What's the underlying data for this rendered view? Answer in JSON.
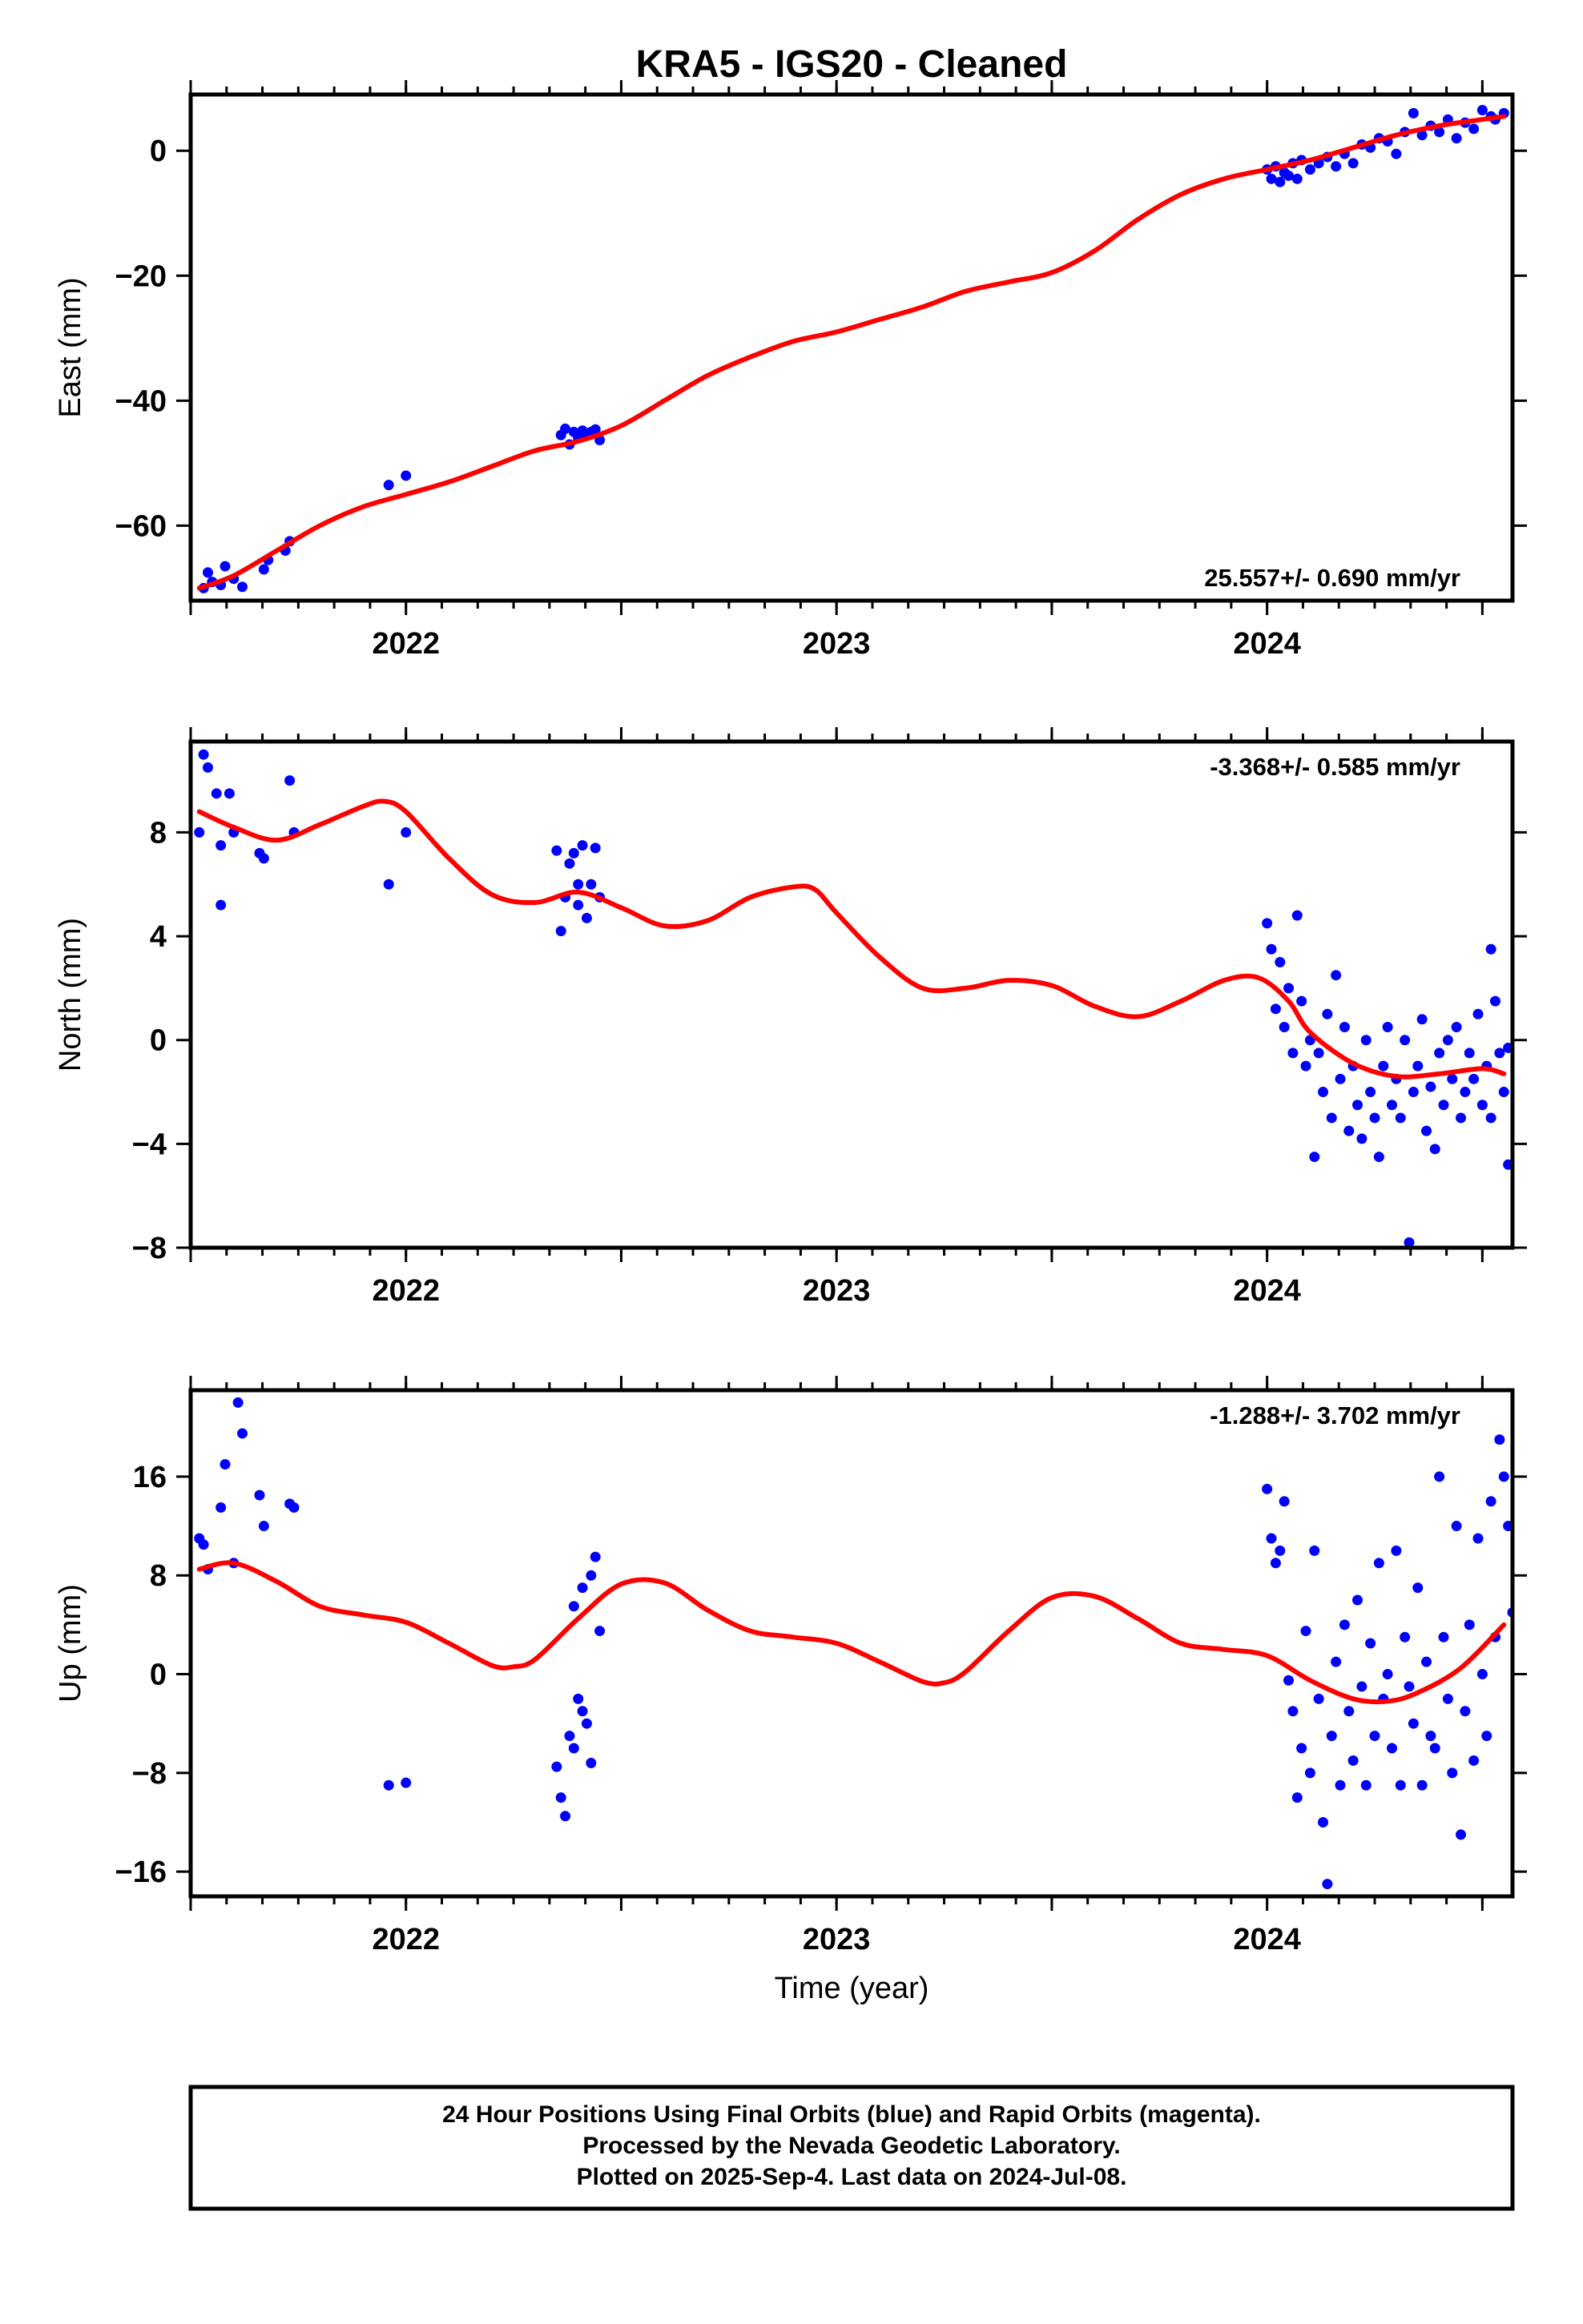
{
  "title": "KRA5  - IGS20 - Cleaned",
  "xlabel": "Time (year)",
  "footer": [
    "24 Hour Positions Using Final Orbits (blue) and Rapid Orbits (magenta).",
    "Processed by the Nevada Geodetic Laboratory.",
    "Plotted on 2025-Sep-4. Last data on 2024-Jul-08."
  ],
  "colors": {
    "data": "#0000ff",
    "fit": "#ff0000",
    "frame": "#000000"
  },
  "chart_data": [
    {
      "type": "scatter",
      "ylabel": "East (mm)",
      "xlim": [
        2021.5,
        2024.57
      ],
      "ylim": [
        -72,
        9
      ],
      "xticks": [
        2022,
        2023,
        2024
      ],
      "yticks": [
        -60,
        -40,
        -20,
        0
      ],
      "rate_text": "25.557+/- 0.690 mm/yr",
      "rate_position": "bottom-right",
      "points": [
        [
          2021.53,
          -70
        ],
        [
          2021.54,
          -67.5
        ],
        [
          2021.55,
          -69
        ],
        [
          2021.57,
          -69.5
        ],
        [
          2021.58,
          -66.5
        ],
        [
          2021.6,
          -68.5
        ],
        [
          2021.62,
          -69.8
        ],
        [
          2021.67,
          -67
        ],
        [
          2021.68,
          -65.5
        ],
        [
          2021.72,
          -64
        ],
        [
          2021.73,
          -62.5
        ],
        [
          2021.96,
          -53.5
        ],
        [
          2022.0,
          -52
        ],
        [
          2022.36,
          -45.5
        ],
        [
          2022.37,
          -44.5
        ],
        [
          2022.38,
          -47
        ],
        [
          2022.39,
          -45
        ],
        [
          2022.4,
          -46
        ],
        [
          2022.41,
          -44.8
        ],
        [
          2022.42,
          -45.5
        ],
        [
          2022.43,
          -45
        ],
        [
          2022.44,
          -44.6
        ],
        [
          2022.45,
          -46.3
        ],
        [
          2024.0,
          -3
        ],
        [
          2024.01,
          -4.5
        ],
        [
          2024.02,
          -2.5
        ],
        [
          2024.03,
          -5
        ],
        [
          2024.04,
          -3.5
        ],
        [
          2024.05,
          -4
        ],
        [
          2024.06,
          -2
        ],
        [
          2024.07,
          -4.5
        ],
        [
          2024.08,
          -1.5
        ],
        [
          2024.1,
          -3
        ],
        [
          2024.12,
          -2
        ],
        [
          2024.14,
          -1
        ],
        [
          2024.16,
          -2.5
        ],
        [
          2024.18,
          -0.5
        ],
        [
          2024.2,
          -2
        ],
        [
          2024.22,
          1
        ],
        [
          2024.24,
          0.5
        ],
        [
          2024.26,
          2
        ],
        [
          2024.28,
          1.5
        ],
        [
          2024.3,
          -0.5
        ],
        [
          2024.32,
          3
        ],
        [
          2024.34,
          6
        ],
        [
          2024.36,
          2.5
        ],
        [
          2024.38,
          4
        ],
        [
          2024.4,
          3
        ],
        [
          2024.42,
          5
        ],
        [
          2024.44,
          2
        ],
        [
          2024.46,
          4.5
        ],
        [
          2024.48,
          3.5
        ],
        [
          2024.5,
          6.5
        ],
        [
          2024.52,
          5.5
        ],
        [
          2024.53,
          5
        ],
        [
          2024.55,
          6
        ]
      ],
      "fit": {
        "x": [
          2021.52,
          2021.6,
          2021.7,
          2021.8,
          2021.9,
          2022.0,
          2022.1,
          2022.2,
          2022.3,
          2022.4,
          2022.5,
          2022.6,
          2022.7,
          2022.8,
          2022.9,
          2023.0,
          2023.1,
          2023.2,
          2023.3,
          2023.4,
          2023.5,
          2023.6,
          2023.7,
          2023.8,
          2023.9,
          2024.0,
          2024.1,
          2024.2,
          2024.3,
          2024.4,
          2024.5,
          2024.55
        ],
        "y": [
          -70,
          -68,
          -64,
          -60,
          -57,
          -55,
          -53,
          -50.5,
          -48,
          -46.5,
          -44,
          -40,
          -36,
          -33,
          -30.5,
          -29,
          -27,
          -25,
          -22.5,
          -21,
          -19.5,
          -16,
          -11,
          -7,
          -4.5,
          -3,
          -1.5,
          0.5,
          2.5,
          4,
          5,
          5.5
        ]
      }
    },
    {
      "type": "scatter",
      "ylabel": "North (mm)",
      "xlim": [
        2021.5,
        2024.57
      ],
      "ylim": [
        -8,
        11.5
      ],
      "xticks": [
        2022,
        2023,
        2024
      ],
      "yticks": [
        -8,
        -4,
        0,
        4,
        8
      ],
      "rate_text": "-3.368+/- 0.585 mm/yr",
      "rate_position": "top-right",
      "points": [
        [
          2021.53,
          11
        ],
        [
          2021.54,
          10.5
        ],
        [
          2021.52,
          8
        ],
        [
          2021.56,
          9.5
        ],
        [
          2021.57,
          7.5
        ],
        [
          2021.57,
          5.2
        ],
        [
          2021.59,
          9.5
        ],
        [
          2021.6,
          8
        ],
        [
          2021.66,
          7.2
        ],
        [
          2021.67,
          7
        ],
        [
          2021.73,
          10
        ],
        [
          2021.74,
          8
        ],
        [
          2021.96,
          6
        ],
        [
          2022.0,
          8
        ],
        [
          2022.35,
          7.3
        ],
        [
          2022.36,
          4.2
        ],
        [
          2022.37,
          5.5
        ],
        [
          2022.38,
          6.8
        ],
        [
          2022.39,
          7.2
        ],
        [
          2022.4,
          6
        ],
        [
          2022.4,
          5.2
        ],
        [
          2022.41,
          7.5
        ],
        [
          2022.42,
          4.7
        ],
        [
          2022.43,
          6
        ],
        [
          2022.44,
          7.4
        ],
        [
          2022.45,
          5.5
        ],
        [
          2024.0,
          4.5
        ],
        [
          2024.01,
          3.5
        ],
        [
          2024.02,
          1.2
        ],
        [
          2024.03,
          3
        ],
        [
          2024.04,
          0.5
        ],
        [
          2024.05,
          2
        ],
        [
          2024.06,
          -0.5
        ],
        [
          2024.07,
          4.8
        ],
        [
          2024.08,
          1.5
        ],
        [
          2024.09,
          -1
        ],
        [
          2024.1,
          0
        ],
        [
          2024.11,
          -4.5
        ],
        [
          2024.12,
          -0.5
        ],
        [
          2024.13,
          -2
        ],
        [
          2024.14,
          1
        ],
        [
          2024.15,
          -3
        ],
        [
          2024.16,
          2.5
        ],
        [
          2024.17,
          -1.5
        ],
        [
          2024.18,
          0.5
        ],
        [
          2024.19,
          -3.5
        ],
        [
          2024.2,
          -1
        ],
        [
          2024.21,
          -2.5
        ],
        [
          2024.22,
          -3.8
        ],
        [
          2024.23,
          0
        ],
        [
          2024.24,
          -2
        ],
        [
          2024.25,
          -3
        ],
        [
          2024.26,
          -4.5
        ],
        [
          2024.27,
          -1
        ],
        [
          2024.28,
          0.5
        ],
        [
          2024.29,
          -2.5
        ],
        [
          2024.3,
          -1.5
        ],
        [
          2024.31,
          -3
        ],
        [
          2024.32,
          0
        ],
        [
          2024.33,
          -7.8
        ],
        [
          2024.34,
          -2
        ],
        [
          2024.35,
          -1
        ],
        [
          2024.36,
          0.8
        ],
        [
          2024.37,
          -3.5
        ],
        [
          2024.38,
          -1.8
        ],
        [
          2024.39,
          -4.2
        ],
        [
          2024.4,
          -0.5
        ],
        [
          2024.41,
          -2.5
        ],
        [
          2024.42,
          0
        ],
        [
          2024.43,
          -1.5
        ],
        [
          2024.44,
          0.5
        ],
        [
          2024.45,
          -3
        ],
        [
          2024.46,
          -2
        ],
        [
          2024.47,
          -0.5
        ],
        [
          2024.48,
          -1.5
        ],
        [
          2024.49,
          1
        ],
        [
          2024.5,
          -2.5
        ],
        [
          2024.51,
          -1
        ],
        [
          2024.52,
          -3
        ],
        [
          2024.52,
          3.5
        ],
        [
          2024.53,
          1.5
        ],
        [
          2024.54,
          -0.5
        ],
        [
          2024.55,
          -2
        ],
        [
          2024.56,
          -4.8
        ],
        [
          2024.56,
          -0.3
        ]
      ],
      "fit": {
        "x": [
          2021.52,
          2021.6,
          2021.7,
          2021.8,
          2021.9,
          2021.95,
          2022.0,
          2022.1,
          2022.2,
          2022.3,
          2022.4,
          2022.5,
          2022.6,
          2022.7,
          2022.8,
          2022.9,
          2022.95,
          2023.0,
          2023.1,
          2023.2,
          2023.3,
          2023.4,
          2023.5,
          2023.6,
          2023.7,
          2023.8,
          2023.9,
          2023.98,
          2024.05,
          2024.1,
          2024.2,
          2024.3,
          2024.4,
          2024.5,
          2024.55
        ],
        "y": [
          8.8,
          8.2,
          7.7,
          8.3,
          9,
          9.2,
          8.8,
          7,
          5.6,
          5.3,
          5.7,
          5.1,
          4.4,
          4.6,
          5.5,
          5.9,
          5.8,
          4.9,
          3.2,
          2,
          2,
          2.3,
          2.1,
          1.3,
          0.9,
          1.5,
          2.3,
          2.4,
          1.5,
          0.3,
          -0.9,
          -1.4,
          -1.3,
          -1.1,
          -1.3
        ]
      }
    },
    {
      "type": "scatter",
      "ylabel": "Up (mm)",
      "xlim": [
        2021.5,
        2024.57
      ],
      "ylim": [
        -18,
        23
      ],
      "xticks": [
        2022,
        2023,
        2024
      ],
      "yticks": [
        -16,
        -8,
        0,
        8,
        16
      ],
      "rate_text": "-1.288+/- 3.702 mm/yr",
      "rate_position": "top-right",
      "points": [
        [
          2021.52,
          11
        ],
        [
          2021.53,
          10.5
        ],
        [
          2021.54,
          8.5
        ],
        [
          2021.57,
          13.5
        ],
        [
          2021.58,
          17
        ],
        [
          2021.6,
          9
        ],
        [
          2021.61,
          22
        ],
        [
          2021.62,
          19.5
        ],
        [
          2021.66,
          14.5
        ],
        [
          2021.67,
          12
        ],
        [
          2021.73,
          13.8
        ],
        [
          2021.74,
          13.5
        ],
        [
          2021.96,
          -9
        ],
        [
          2022.0,
          -8.8
        ],
        [
          2022.35,
          -7.5
        ],
        [
          2022.36,
          -10
        ],
        [
          2022.37,
          -11.5
        ],
        [
          2022.38,
          -5
        ],
        [
          2022.39,
          -6
        ],
        [
          2022.4,
          -2
        ],
        [
          2022.41,
          -3
        ],
        [
          2022.42,
          -4
        ],
        [
          2022.43,
          -7.2
        ],
        [
          2022.39,
          5.5
        ],
        [
          2022.41,
          7
        ],
        [
          2022.43,
          8
        ],
        [
          2022.44,
          9.5
        ],
        [
          2022.45,
          3.5
        ],
        [
          2024.0,
          15
        ],
        [
          2024.01,
          11
        ],
        [
          2024.02,
          9
        ],
        [
          2024.03,
          10
        ],
        [
          2024.04,
          14
        ],
        [
          2024.05,
          -0.5
        ],
        [
          2024.06,
          -3
        ],
        [
          2024.07,
          -10
        ],
        [
          2024.08,
          -6
        ],
        [
          2024.09,
          3.5
        ],
        [
          2024.1,
          -8
        ],
        [
          2024.11,
          10
        ],
        [
          2024.12,
          -2
        ],
        [
          2024.13,
          -12
        ],
        [
          2024.14,
          -17
        ],
        [
          2024.15,
          -5
        ],
        [
          2024.16,
          1
        ],
        [
          2024.17,
          -9
        ],
        [
          2024.18,
          4
        ],
        [
          2024.19,
          -3
        ],
        [
          2024.2,
          -7
        ],
        [
          2024.21,
          6
        ],
        [
          2024.22,
          -1
        ],
        [
          2024.23,
          -9
        ],
        [
          2024.24,
          2.5
        ],
        [
          2024.25,
          -5
        ],
        [
          2024.26,
          9
        ],
        [
          2024.27,
          -2
        ],
        [
          2024.28,
          0
        ],
        [
          2024.29,
          -6
        ],
        [
          2024.3,
          10
        ],
        [
          2024.31,
          -9
        ],
        [
          2024.32,
          3
        ],
        [
          2024.33,
          -1
        ],
        [
          2024.34,
          -4
        ],
        [
          2024.35,
          7
        ],
        [
          2024.36,
          -9
        ],
        [
          2024.37,
          1
        ],
        [
          2024.38,
          -5
        ],
        [
          2024.39,
          -6
        ],
        [
          2024.4,
          16
        ],
        [
          2024.41,
          3
        ],
        [
          2024.42,
          -2
        ],
        [
          2024.43,
          -8
        ],
        [
          2024.44,
          12
        ],
        [
          2024.45,
          -13
        ],
        [
          2024.46,
          -3
        ],
        [
          2024.47,
          4
        ],
        [
          2024.48,
          -7
        ],
        [
          2024.49,
          11
        ],
        [
          2024.5,
          0
        ],
        [
          2024.51,
          -5
        ],
        [
          2024.52,
          14
        ],
        [
          2024.53,
          3
        ],
        [
          2024.54,
          19
        ],
        [
          2024.55,
          16
        ],
        [
          2024.56,
          12
        ],
        [
          2024.57,
          5
        ]
      ],
      "fit": {
        "x": [
          2021.52,
          2021.6,
          2021.7,
          2021.8,
          2021.9,
          2022.0,
          2022.1,
          2022.2,
          2022.25,
          2022.3,
          2022.4,
          2022.5,
          2022.6,
          2022.7,
          2022.8,
          2022.9,
          2023.0,
          2023.1,
          2023.2,
          2023.25,
          2023.3,
          2023.4,
          2023.5,
          2023.6,
          2023.7,
          2023.8,
          2023.9,
          2024.0,
          2024.1,
          2024.2,
          2024.28,
          2024.35,
          2024.45,
          2024.55
        ],
        "y": [
          8.5,
          9,
          7.5,
          5.5,
          4.8,
          4.2,
          2.5,
          0.7,
          0.6,
          1.2,
          4.5,
          7.3,
          7.4,
          5.2,
          3.5,
          3,
          2.5,
          1,
          -0.6,
          -0.7,
          0.2,
          3.5,
          6.2,
          6.3,
          4.5,
          2.5,
          2,
          1.5,
          -0.5,
          -2,
          -2.2,
          -1.5,
          0.5,
          4
        ]
      }
    }
  ]
}
